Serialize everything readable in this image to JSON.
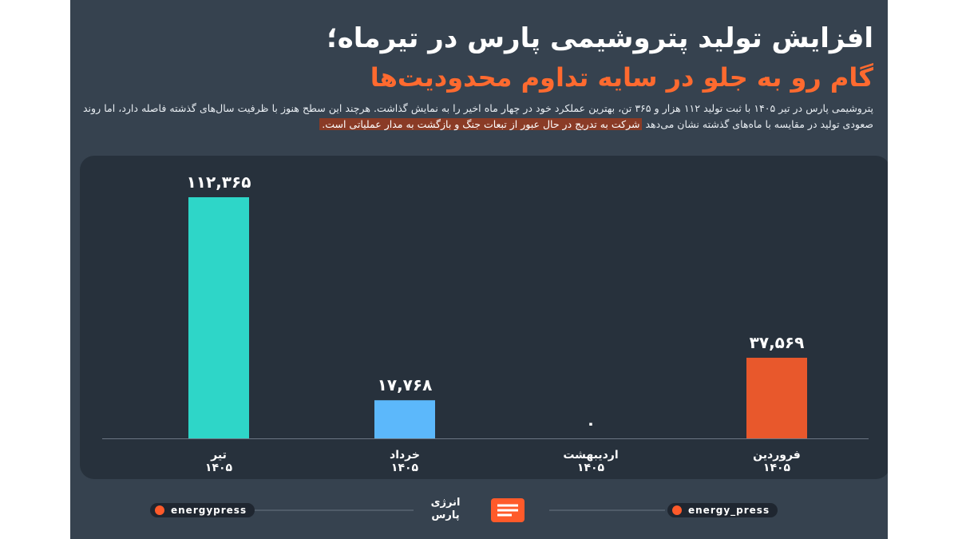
{
  "chart_data": {
    "type": "bar",
    "title": "افزایش تولید پتروشیمی پارس در تیرماه؛",
    "subtitle": "گام رو به جلو در سایه تداوم محدودیت‌ها",
    "description": "پتروشیمی پارس در تیر ۱۴۰۵ با ثبت تولید ۱۱۲ هزار و ۳۶۵ تن، بهترین عملکرد خود در چهار ماه اخیر را به نمایش گذاشت. هرچند این سطح هنوز با ظرفیت سال‌های گذشته فاصله دارد، اما روند صعودی تولید در مقایسه با ماه‌های گذشته نشان می‌دهد",
    "highlight": "شرکت به تدریج در حال عبور از تبعات جنگ و بازگشت به مدار عملیاتی است.",
    "categories": [
      "فروردین",
      "اردیبهشت",
      "خرداد",
      "تیر"
    ],
    "year_labels": [
      "۱۴۰۵",
      "۱۴۰۵",
      "۱۴۰۵",
      "۱۴۰۵"
    ],
    "values": [
      37569,
      0,
      17768,
      112365
    ],
    "value_labels": [
      "۳۷,۵۶۹",
      "۰",
      "۱۷,۷۶۸",
      "۱۱۲,۳۶۵"
    ],
    "colors": [
      "#e8582c",
      "#6a9fd0",
      "#5cb8fb",
      "#2ed6c8"
    ],
    "ylim": [
      0,
      112365
    ]
  },
  "footer": {
    "telegram": "energypress",
    "instagram": "energy_press",
    "logo_lines": [
      "انرژی",
      "پارس"
    ]
  }
}
